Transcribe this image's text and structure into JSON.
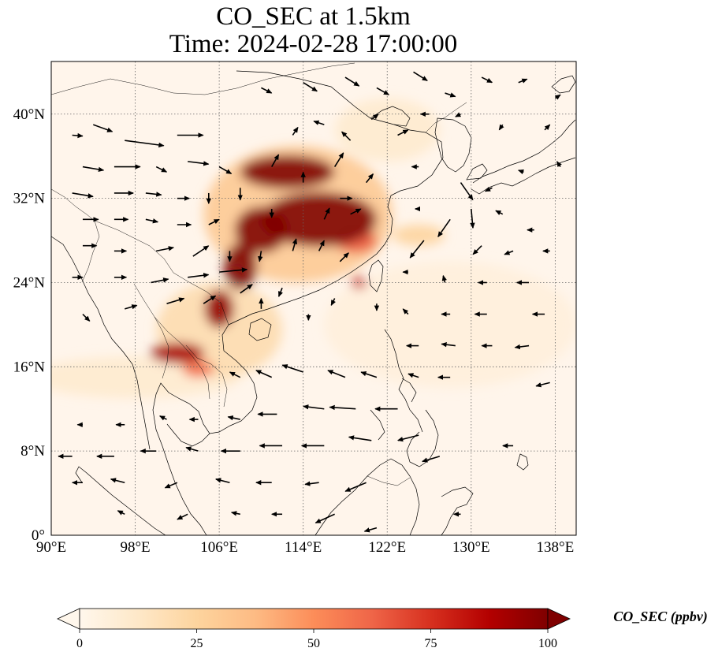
{
  "title": {
    "line1": "CO_SEC at 1.5km",
    "line2": "Time: 2024-02-28 17:00:00"
  },
  "map": {
    "extent": {
      "lon_min": 90,
      "lon_max": 140,
      "lat_min": 0,
      "lat_max": 45
    },
    "lon_ticks": [
      {
        "value": 90,
        "label": "90°E"
      },
      {
        "value": 98,
        "label": "98°E"
      },
      {
        "value": 106,
        "label": "106°E"
      },
      {
        "value": 114,
        "label": "114°E"
      },
      {
        "value": 122,
        "label": "122°E"
      },
      {
        "value": 130,
        "label": "130°E"
      },
      {
        "value": 138,
        "label": "138°E"
      }
    ],
    "lat_ticks": [
      {
        "value": 0,
        "label": "0°"
      },
      {
        "value": 8,
        "label": "8°N"
      },
      {
        "value": 16,
        "label": "16°N"
      },
      {
        "value": 24,
        "label": "24°N"
      },
      {
        "value": 32,
        "label": "32°N"
      },
      {
        "value": 40,
        "label": "40°N"
      }
    ],
    "gridlines": true,
    "background_color": "#fff5eb",
    "plumes": [
      {
        "lon": 112.5,
        "lat": 34.5,
        "rx": 4.5,
        "ry": 1.6,
        "value": 100
      },
      {
        "lon": 115.5,
        "lat": 30.0,
        "rx": 5.5,
        "ry": 2.6,
        "value": 100
      },
      {
        "lon": 110.0,
        "lat": 29.0,
        "rx": 2.5,
        "ry": 2.2,
        "value": 100
      },
      {
        "lon": 108.0,
        "lat": 25.5,
        "rx": 1.6,
        "ry": 2.2,
        "value": 100
      },
      {
        "lon": 106.0,
        "lat": 21.5,
        "rx": 1.4,
        "ry": 1.8,
        "value": 95
      },
      {
        "lon": 102.0,
        "lat": 17.3,
        "rx": 2.6,
        "ry": 1.0,
        "value": 90
      },
      {
        "lon": 104.0,
        "lat": 15.8,
        "rx": 1.5,
        "ry": 0.8,
        "value": 60
      },
      {
        "lon": 119.3,
        "lat": 24.0,
        "rx": 0.7,
        "ry": 0.6,
        "value": 80
      },
      {
        "lon": 119.0,
        "lat": 28.0,
        "rx": 2.0,
        "ry": 1.2,
        "value": 65
      },
      {
        "lon": 125.0,
        "lat": 28.5,
        "rx": 2.5,
        "ry": 1.0,
        "value": 25
      },
      {
        "lon": 113.5,
        "lat": 30.5,
        "rx": 9.0,
        "ry": 6.5,
        "value": 30
      },
      {
        "lon": 106.0,
        "lat": 19.5,
        "rx": 6.0,
        "ry": 4.5,
        "value": 20
      },
      {
        "lon": 98.0,
        "lat": 15.0,
        "rx": 10.0,
        "ry": 2.0,
        "value": 10
      },
      {
        "lon": 128.0,
        "lat": 20.0,
        "rx": 12.0,
        "ry": 6.0,
        "value": 6
      },
      {
        "lon": 122.0,
        "lat": 38.5,
        "rx": 5.0,
        "ry": 3.0,
        "value": 10
      }
    ],
    "wind_vectors": [
      {
        "lon": 92,
        "lat": 38,
        "u": 1.2,
        "v": -0.1
      },
      {
        "lon": 94,
        "lat": 39,
        "u": 2.2,
        "v": -0.8
      },
      {
        "lon": 97,
        "lat": 37.5,
        "u": 4.5,
        "v": -0.6
      },
      {
        "lon": 102,
        "lat": 38,
        "u": 3.0,
        "v": 0.0
      },
      {
        "lon": 93,
        "lat": 35,
        "u": 2.4,
        "v": -0.4
      },
      {
        "lon": 96,
        "lat": 35,
        "u": 3.0,
        "v": 0.0
      },
      {
        "lon": 100,
        "lat": 35,
        "u": 1.2,
        "v": -0.6
      },
      {
        "lon": 103,
        "lat": 35.5,
        "u": 2.4,
        "v": -0.3
      },
      {
        "lon": 106,
        "lat": 35,
        "u": 1.4,
        "v": -0.8
      },
      {
        "lon": 92,
        "lat": 32.5,
        "u": 2.4,
        "v": -0.4
      },
      {
        "lon": 96,
        "lat": 32.5,
        "u": 2.2,
        "v": 0.0
      },
      {
        "lon": 99,
        "lat": 32.5,
        "u": 1.8,
        "v": -0.2
      },
      {
        "lon": 102,
        "lat": 32,
        "u": 1.4,
        "v": 0.0
      },
      {
        "lon": 105,
        "lat": 32.5,
        "u": 0.0,
        "v": -1.2
      },
      {
        "lon": 108,
        "lat": 33,
        "u": 0.0,
        "v": -1.4
      },
      {
        "lon": 93,
        "lat": 30,
        "u": 1.8,
        "v": 0.0
      },
      {
        "lon": 96,
        "lat": 30,
        "u": 1.6,
        "v": 0.0
      },
      {
        "lon": 99,
        "lat": 30,
        "u": 1.4,
        "v": -0.3
      },
      {
        "lon": 102,
        "lat": 29.5,
        "u": 1.6,
        "v": 0.0
      },
      {
        "lon": 105,
        "lat": 29.5,
        "u": 1.2,
        "v": 0.6
      },
      {
        "lon": 93,
        "lat": 27.5,
        "u": 1.6,
        "v": 0.0
      },
      {
        "lon": 96,
        "lat": 27,
        "u": 1.4,
        "v": 0.0
      },
      {
        "lon": 100,
        "lat": 27,
        "u": 2.0,
        "v": 0.4
      },
      {
        "lon": 103.5,
        "lat": 26.5,
        "u": 1.8,
        "v": 1.2
      },
      {
        "lon": 107,
        "lat": 27,
        "u": 0.0,
        "v": -1.2
      },
      {
        "lon": 92,
        "lat": 24.5,
        "u": 1.2,
        "v": 0.0
      },
      {
        "lon": 96,
        "lat": 24.5,
        "u": 1.4,
        "v": 0.0
      },
      {
        "lon": 99.5,
        "lat": 24,
        "u": 2.0,
        "v": 0.4
      },
      {
        "lon": 103,
        "lat": 24.5,
        "u": 2.4,
        "v": 0.3
      },
      {
        "lon": 106,
        "lat": 25,
        "u": 3.2,
        "v": 0.3
      },
      {
        "lon": 93,
        "lat": 21,
        "u": 0.8,
        "v": -0.8
      },
      {
        "lon": 97,
        "lat": 21.5,
        "u": 1.4,
        "v": 0.4
      },
      {
        "lon": 101,
        "lat": 22,
        "u": 2.0,
        "v": 0.6
      },
      {
        "lon": 104.5,
        "lat": 22,
        "u": 1.4,
        "v": 0.9
      },
      {
        "lon": 111,
        "lat": 31,
        "u": 0.0,
        "v": -1.0
      },
      {
        "lon": 113,
        "lat": 27,
        "u": 0.4,
        "v": 1.4
      },
      {
        "lon": 115.5,
        "lat": 27,
        "u": 0.6,
        "v": 1.2
      },
      {
        "lon": 117.5,
        "lat": 26,
        "u": 1.0,
        "v": 1.0
      },
      {
        "lon": 116,
        "lat": 30,
        "u": 0.6,
        "v": 1.3
      },
      {
        "lon": 118.5,
        "lat": 30.5,
        "u": 1.2,
        "v": 0.6
      },
      {
        "lon": 110,
        "lat": 27,
        "u": -0.2,
        "v": -1.2
      },
      {
        "lon": 108,
        "lat": 23,
        "u": 1.4,
        "v": 1.0
      },
      {
        "lon": 110,
        "lat": 21.5,
        "u": 0.0,
        "v": 1.2
      },
      {
        "lon": 112,
        "lat": 23.5,
        "u": -0.4,
        "v": -1.0
      },
      {
        "lon": 114.5,
        "lat": 21,
        "u": 0.0,
        "v": -0.7
      },
      {
        "lon": 117,
        "lat": 22.5,
        "u": -0.4,
        "v": -0.8
      },
      {
        "lon": 121,
        "lat": 22,
        "u": 0.0,
        "v": -0.8
      },
      {
        "lon": 111,
        "lat": 35,
        "u": 0.8,
        "v": 1.4
      },
      {
        "lon": 114,
        "lat": 33.5,
        "u": 0.0,
        "v": 1.2
      },
      {
        "lon": 117.5,
        "lat": 32,
        "u": 1.4,
        "v": 0.0
      },
      {
        "lon": 117,
        "lat": 35,
        "u": 1.0,
        "v": 1.6
      },
      {
        "lon": 120,
        "lat": 33.5,
        "u": 0.8,
        "v": 1.0
      },
      {
        "lon": 113,
        "lat": 38,
        "u": 0.6,
        "v": 0.9
      },
      {
        "lon": 116,
        "lat": 39,
        "u": -1.2,
        "v": 0.4
      },
      {
        "lon": 118.5,
        "lat": 37.5,
        "u": -1.0,
        "v": 1.0
      },
      {
        "lon": 120.5,
        "lat": 39.5,
        "u": 0.8,
        "v": 0.6
      },
      {
        "lon": 123,
        "lat": 38,
        "u": 1.2,
        "v": 0.6
      },
      {
        "lon": 110,
        "lat": 42.5,
        "u": 1.2,
        "v": -0.6
      },
      {
        "lon": 114,
        "lat": 43,
        "u": 1.6,
        "v": -1.0
      },
      {
        "lon": 118,
        "lat": 43.5,
        "u": 1.6,
        "v": -1.0
      },
      {
        "lon": 121,
        "lat": 42.5,
        "u": 1.4,
        "v": -0.8
      },
      {
        "lon": 124.5,
        "lat": 44,
        "u": 1.6,
        "v": -1.0
      },
      {
        "lon": 127.5,
        "lat": 42,
        "u": 1.2,
        "v": -0.4
      },
      {
        "lon": 131,
        "lat": 43.5,
        "u": 1.2,
        "v": -0.6
      },
      {
        "lon": 134.5,
        "lat": 43,
        "u": 1.0,
        "v": 0.4
      },
      {
        "lon": 138,
        "lat": 41.5,
        "u": 0.6,
        "v": 0.4
      },
      {
        "lon": 126,
        "lat": 40,
        "u": -1.0,
        "v": 0.0
      },
      {
        "lon": 129,
        "lat": 40,
        "u": -0.6,
        "v": -0.3
      },
      {
        "lon": 133,
        "lat": 39,
        "u": -0.4,
        "v": -0.6
      },
      {
        "lon": 137,
        "lat": 38.5,
        "u": 0.6,
        "v": 0.6
      },
      {
        "lon": 125,
        "lat": 35,
        "u": -0.8,
        "v": 0.0
      },
      {
        "lon": 129,
        "lat": 33.5,
        "u": 1.4,
        "v": -2.0
      },
      {
        "lon": 132,
        "lat": 33,
        "u": -0.8,
        "v": -0.4
      },
      {
        "lon": 135,
        "lat": 34.5,
        "u": -0.6,
        "v": 0.2
      },
      {
        "lon": 138.5,
        "lat": 35,
        "u": -0.4,
        "v": 0.6
      },
      {
        "lon": 125,
        "lat": 31,
        "u": -0.4,
        "v": 0.0
      },
      {
        "lon": 128,
        "lat": 30,
        "u": -1.4,
        "v": -2.0
      },
      {
        "lon": 130,
        "lat": 31,
        "u": 0.2,
        "v": -2.2
      },
      {
        "lon": 133,
        "lat": 30.5,
        "u": -0.8,
        "v": 0.4
      },
      {
        "lon": 136,
        "lat": 29,
        "u": -0.8,
        "v": 0.0
      },
      {
        "lon": 125.5,
        "lat": 28,
        "u": -1.6,
        "v": -2.0
      },
      {
        "lon": 131,
        "lat": 27.5,
        "u": -1.0,
        "v": -1.0
      },
      {
        "lon": 134,
        "lat": 27,
        "u": -1.0,
        "v": -0.4
      },
      {
        "lon": 137.5,
        "lat": 27,
        "u": -0.8,
        "v": 0.0
      },
      {
        "lon": 124,
        "lat": 25,
        "u": -0.6,
        "v": 0.0
      },
      {
        "lon": 127.5,
        "lat": 24,
        "u": -0.2,
        "v": 0.8
      },
      {
        "lon": 131.5,
        "lat": 24,
        "u": -1.0,
        "v": 0.0
      },
      {
        "lon": 135.5,
        "lat": 24,
        "u": -1.4,
        "v": 0.0
      },
      {
        "lon": 124,
        "lat": 21,
        "u": -0.6,
        "v": 0.6
      },
      {
        "lon": 128,
        "lat": 21,
        "u": -1.0,
        "v": 0.0
      },
      {
        "lon": 131.5,
        "lat": 21,
        "u": -1.4,
        "v": 0.0
      },
      {
        "lon": 125,
        "lat": 18,
        "u": -1.4,
        "v": 0.0
      },
      {
        "lon": 128.5,
        "lat": 18,
        "u": -1.6,
        "v": 0.2
      },
      {
        "lon": 132,
        "lat": 18,
        "u": -1.2,
        "v": 0.0
      },
      {
        "lon": 135.5,
        "lat": 18,
        "u": -1.6,
        "v": -0.2
      },
      {
        "lon": 125,
        "lat": 15,
        "u": -1.2,
        "v": 0.4
      },
      {
        "lon": 128,
        "lat": 15,
        "u": -1.4,
        "v": 0.0
      },
      {
        "lon": 137.5,
        "lat": 14.5,
        "u": -1.6,
        "v": -0.4
      },
      {
        "lon": 118,
        "lat": 15,
        "u": -2.0,
        "v": 0.8
      },
      {
        "lon": 121,
        "lat": 15,
        "u": -1.8,
        "v": 0.6
      },
      {
        "lon": 114,
        "lat": 15.5,
        "u": -2.4,
        "v": 0.8
      },
      {
        "lon": 111,
        "lat": 15,
        "u": -1.8,
        "v": 0.8
      },
      {
        "lon": 108,
        "lat": 15,
        "u": -1.2,
        "v": 0.6
      },
      {
        "lon": 123,
        "lat": 12,
        "u": -2.6,
        "v": 0.0
      },
      {
        "lon": 119,
        "lat": 12,
        "u": -3.0,
        "v": 0.2
      },
      {
        "lon": 116,
        "lat": 12,
        "u": -2.4,
        "v": 0.3
      },
      {
        "lon": 111.5,
        "lat": 11.5,
        "u": -2.2,
        "v": 0.0
      },
      {
        "lon": 108,
        "lat": 11,
        "u": -1.4,
        "v": 0.3
      },
      {
        "lon": 104,
        "lat": 11,
        "u": -1.0,
        "v": 0.0
      },
      {
        "lon": 101,
        "lat": 11,
        "u": -0.8,
        "v": 0.4
      },
      {
        "lon": 97,
        "lat": 10.5,
        "u": -1.0,
        "v": 0.0
      },
      {
        "lon": 93,
        "lat": 10.5,
        "u": -0.6,
        "v": 0.0
      },
      {
        "lon": 125,
        "lat": 9.5,
        "u": -2.4,
        "v": -0.6
      },
      {
        "lon": 120.5,
        "lat": 9,
        "u": -2.6,
        "v": 0.4
      },
      {
        "lon": 116,
        "lat": 8.5,
        "u": -2.6,
        "v": 0.0
      },
      {
        "lon": 112,
        "lat": 8.5,
        "u": -2.6,
        "v": 0.0
      },
      {
        "lon": 108,
        "lat": 8,
        "u": -2.2,
        "v": 0.0
      },
      {
        "lon": 104,
        "lat": 8,
        "u": -1.4,
        "v": 0.4
      },
      {
        "lon": 100,
        "lat": 8,
        "u": -1.8,
        "v": 0.0
      },
      {
        "lon": 96,
        "lat": 7.5,
        "u": -2.0,
        "v": 0.0
      },
      {
        "lon": 92,
        "lat": 7.5,
        "u": -1.6,
        "v": 0.0
      },
      {
        "lon": 127,
        "lat": 7.5,
        "u": -2.0,
        "v": -0.6
      },
      {
        "lon": 120,
        "lat": 5,
        "u": -2.4,
        "v": -1.0
      },
      {
        "lon": 115.5,
        "lat": 5,
        "u": -1.6,
        "v": -0.2
      },
      {
        "lon": 111,
        "lat": 5,
        "u": -1.8,
        "v": 0.0
      },
      {
        "lon": 107,
        "lat": 5,
        "u": -1.6,
        "v": 0.4
      },
      {
        "lon": 102,
        "lat": 5,
        "u": -1.4,
        "v": -0.6
      },
      {
        "lon": 97,
        "lat": 5,
        "u": -1.6,
        "v": 0.4
      },
      {
        "lon": 93,
        "lat": 5,
        "u": -1.2,
        "v": 0.0
      },
      {
        "lon": 117,
        "lat": 2,
        "u": -2.2,
        "v": -1.0
      },
      {
        "lon": 112,
        "lat": 2,
        "u": -1.2,
        "v": 0.0
      },
      {
        "lon": 108,
        "lat": 2,
        "u": -1.0,
        "v": 0.2
      },
      {
        "lon": 103,
        "lat": 2,
        "u": -1.2,
        "v": -0.6
      },
      {
        "lon": 97,
        "lat": 2,
        "u": -0.8,
        "v": 0.4
      },
      {
        "lon": 121,
        "lat": 0.7,
        "u": -1.4,
        "v": -0.4
      },
      {
        "lon": 129,
        "lat": 2,
        "u": -0.8,
        "v": 0.0
      },
      {
        "lon": 134,
        "lat": 8.5,
        "u": -1.2,
        "v": 0.0
      },
      {
        "lon": 137,
        "lat": 21,
        "u": -1.4,
        "v": 0.0
      }
    ]
  },
  "colorbar": {
    "label": "CO_SEC (ppbv)",
    "min": 0,
    "max": 100,
    "extend": "both",
    "cmap": "OrRd",
    "colors": [
      "#fff7ec",
      "#fee8c8",
      "#fdd49e",
      "#fdbb84",
      "#fc8d59",
      "#ef6548",
      "#d7301f",
      "#b30000",
      "#7f0000"
    ],
    "ticks": [
      {
        "value": 0,
        "label": "0"
      },
      {
        "value": 25,
        "label": "25"
      },
      {
        "value": 50,
        "label": "50"
      },
      {
        "value": 75,
        "label": "75"
      },
      {
        "value": 100,
        "label": "100"
      }
    ]
  }
}
